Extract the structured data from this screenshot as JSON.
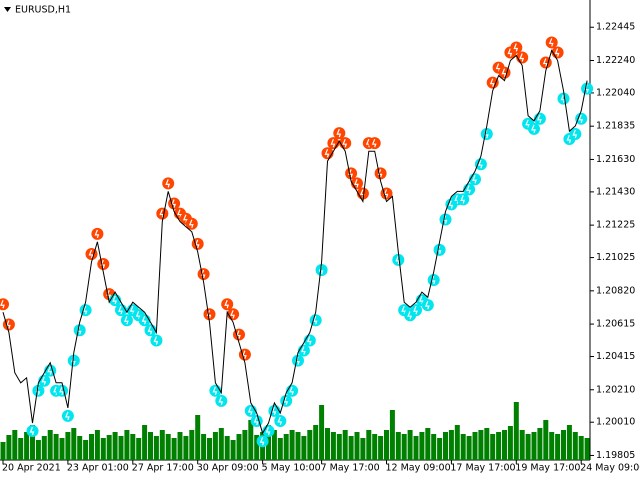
{
  "chart_data": {
    "type": "line",
    "title": "EURUSD,H1",
    "categories": [
      "20 Apr 2021",
      null,
      null,
      null,
      null,
      null,
      null,
      null,
      null,
      null,
      null,
      "23 Apr 01:00",
      null,
      null,
      null,
      null,
      null,
      null,
      null,
      null,
      null,
      null,
      "27 Apr 17:00",
      null,
      null,
      null,
      null,
      null,
      null,
      null,
      null,
      null,
      null,
      "30 Apr 09:00",
      null,
      null,
      null,
      null,
      null,
      null,
      null,
      null,
      null,
      null,
      "5 May 10:00",
      null,
      null,
      null,
      null,
      null,
      null,
      null,
      null,
      null,
      "7 May 17:00",
      null,
      null,
      null,
      null,
      null,
      null,
      null,
      null,
      null,
      null,
      "12 May 09:00",
      null,
      null,
      null,
      null,
      null,
      null,
      null,
      null,
      null,
      null,
      "17 May 17:00",
      null,
      null,
      null,
      null,
      null,
      null,
      null,
      null,
      null,
      null,
      "19 May 17:00",
      null,
      null,
      null,
      null,
      null,
      null,
      null,
      null,
      null,
      null,
      "24 May 09:00",
      null
    ],
    "series": [
      {
        "style": "line",
        "color": "#000000",
        "values": [
          1.20688,
          1.20563,
          1.20315,
          1.20253,
          1.20284,
          1.20005,
          1.20253,
          1.20315,
          1.20377,
          1.20253,
          1.20253,
          1.20098,
          1.20439,
          1.20626,
          1.2075,
          1.20998,
          1.21122,
          1.20936,
          1.2075,
          1.20812,
          1.2075,
          1.20688,
          1.2075,
          1.20719,
          1.20688,
          1.20626,
          1.20563,
          1.21247,
          1.21433,
          1.21309,
          1.21247,
          1.21215,
          1.21184,
          1.2106,
          1.20874,
          1.20626,
          1.20253,
          1.20191,
          1.20688,
          1.20626,
          1.20501,
          1.20377,
          1.20129,
          1.20067,
          1.19942,
          1.20005,
          1.20129,
          1.20067,
          1.20191,
          1.20253,
          1.20439,
          1.20501,
          1.20563,
          1.20688,
          1.20998,
          1.21619,
          1.21681,
          1.21743,
          1.21681,
          1.21495,
          1.21433,
          1.21371,
          1.21681,
          1.21681,
          1.21495,
          1.21371,
          1.21402,
          1.2106,
          1.2075,
          1.20719,
          1.2075,
          1.20812,
          1.20781,
          1.20936,
          1.21122,
          1.21309,
          1.21402,
          1.21433,
          1.21433,
          1.21495,
          1.21557,
          1.2165,
          1.21836,
          1.22054,
          1.22147,
          1.22116,
          1.2224,
          1.22271,
          1.22209,
          1.21899,
          1.21868,
          1.2193,
          1.22178,
          1.22302,
          1.2224,
          1.22054,
          1.21805,
          1.21836,
          1.2193,
          1.22116
        ]
      },
      {
        "style": "marker-above",
        "color": "#ff4500",
        "values": [
          1.20688,
          1.20563,
          null,
          null,
          null,
          null,
          null,
          null,
          null,
          null,
          null,
          null,
          null,
          null,
          null,
          1.20998,
          1.21122,
          1.20936,
          1.2075,
          null,
          null,
          null,
          null,
          null,
          null,
          null,
          null,
          1.21247,
          1.21433,
          1.21309,
          1.21247,
          1.21215,
          1.21184,
          1.2106,
          1.20874,
          1.20626,
          null,
          null,
          1.20688,
          1.20626,
          1.20501,
          1.20377,
          null,
          null,
          null,
          null,
          null,
          null,
          null,
          null,
          null,
          null,
          null,
          null,
          null,
          1.21619,
          1.21681,
          1.21743,
          1.21681,
          1.21495,
          1.21433,
          1.21371,
          1.21681,
          1.21681,
          1.21495,
          1.21371,
          null,
          null,
          null,
          null,
          null,
          null,
          null,
          null,
          null,
          null,
          null,
          null,
          null,
          null,
          null,
          null,
          null,
          1.22054,
          1.22147,
          1.22116,
          1.2224,
          1.22271,
          1.22209,
          null,
          null,
          null,
          1.22178,
          1.22302,
          1.2224,
          null,
          null,
          null,
          null,
          null
        ]
      },
      {
        "style": "marker-below",
        "color": "#00e5ee",
        "values": [
          null,
          null,
          null,
          null,
          null,
          1.20005,
          1.20253,
          1.20315,
          1.20377,
          1.20253,
          1.20253,
          1.20098,
          1.20439,
          1.20626,
          1.2075,
          null,
          null,
          null,
          null,
          1.20812,
          1.2075,
          1.20688,
          1.2075,
          1.20719,
          1.20688,
          1.20626,
          1.20563,
          null,
          null,
          null,
          null,
          null,
          null,
          null,
          null,
          null,
          1.20253,
          1.20191,
          null,
          null,
          null,
          null,
          1.20129,
          1.20067,
          1.19942,
          1.20005,
          1.20129,
          1.20067,
          1.20191,
          1.20253,
          1.20439,
          1.20501,
          1.20563,
          1.20688,
          1.20998,
          null,
          null,
          null,
          null,
          null,
          null,
          null,
          null,
          null,
          null,
          null,
          null,
          1.2106,
          1.2075,
          1.20719,
          1.2075,
          1.20812,
          1.20781,
          1.20936,
          1.21122,
          1.21309,
          1.21402,
          1.21433,
          1.21433,
          1.21495,
          1.21557,
          1.2165,
          1.21836,
          null,
          null,
          null,
          null,
          null,
          null,
          1.21899,
          1.21868,
          1.2193,
          null,
          null,
          null,
          1.22054,
          1.21805,
          1.21836,
          1.2193,
          1.22116
        ]
      }
    ],
    "volume": {
      "color": "#008000",
      "values": [
        18,
        25,
        30,
        22,
        28,
        35,
        20,
        24,
        30,
        26,
        22,
        28,
        32,
        24,
        20,
        26,
        30,
        22,
        25,
        28,
        24,
        30,
        26,
        22,
        35,
        28,
        24,
        30,
        26,
        22,
        28,
        24,
        30,
        45,
        26,
        22,
        28,
        32,
        24,
        20,
        26,
        30,
        40,
        25,
        28,
        35,
        30,
        22,
        26,
        30,
        28,
        24,
        30,
        35,
        55,
        32,
        28,
        26,
        30,
        24,
        28,
        22,
        30,
        26,
        24,
        30,
        50,
        28,
        26,
        30,
        24,
        28,
        32,
        26,
        22,
        28,
        30,
        35,
        26,
        24,
        28,
        30,
        32,
        26,
        28,
        30,
        34,
        58,
        30,
        26,
        28,
        32,
        40,
        28,
        26,
        30,
        35,
        28,
        24,
        22
      ]
    },
    "ylim": [
      1.19777,
      1.22613
    ],
    "yticks": [
      1.22445,
      {
        "value": 1.2224,
        "label": "1.22240"
      },
      {
        "value": 1.2204,
        "label": "1.22040"
      },
      1.21835,
      {
        "value": 1.2163,
        "label": "1.21630"
      },
      {
        "value": 1.2143,
        "label": "1.21430"
      },
      1.21225,
      1.21025,
      {
        "value": 1.2082,
        "label": "1.20820"
      },
      1.20615,
      1.20415,
      {
        "value": 1.2021,
        "label": "1.20210"
      },
      {
        "value": 1.2001,
        "label": "1.20010"
      },
      1.19805
    ]
  }
}
